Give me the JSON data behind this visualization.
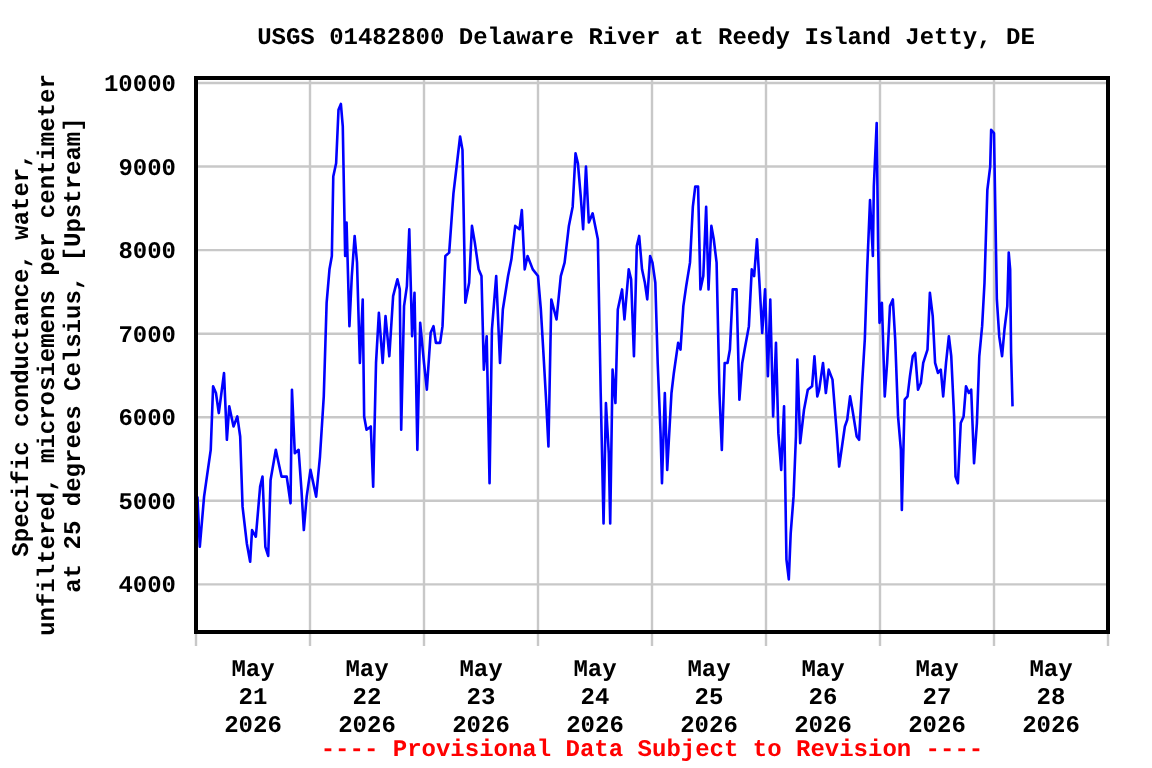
{
  "chart_data": {
    "type": "line",
    "title": "USGS 01482800 Delaware River at Reedy Island Jetty, DE",
    "ylabel": "Specific conductance, water,\nunfiltered, microsiemens per centimeter\nat 25 degrees Celsius, [Upstream]",
    "annotations": [
      "---- Provisional Data Subject to Revision ----"
    ],
    "xlim": [
      "2026-05-21",
      "2026-05-29"
    ],
    "xticks": [
      {
        "value": "2026-05-21",
        "label": null
      },
      {
        "value": "2026-05-21T12:00",
        "label": "May\n21\n2026"
      },
      {
        "value": "2026-05-22",
        "label": null
      },
      {
        "value": "2026-05-22T12:00",
        "label": "May\n22\n2026"
      },
      {
        "value": "2026-05-23",
        "label": null
      },
      {
        "value": "2026-05-23T12:00",
        "label": "May\n23\n2026"
      },
      {
        "value": "2026-05-24",
        "label": null
      },
      {
        "value": "2026-05-24T12:00",
        "label": "May\n24\n2026"
      },
      {
        "value": "2026-05-25",
        "label": null
      },
      {
        "value": "2026-05-25T12:00",
        "label": "May\n25\n2026"
      },
      {
        "value": "2026-05-26",
        "label": null
      },
      {
        "value": "2026-05-26T12:00",
        "label": "May\n26\n2026"
      },
      {
        "value": "2026-05-27",
        "label": null
      },
      {
        "value": "2026-05-27T12:00",
        "label": "May\n27\n2026"
      },
      {
        "value": "2026-05-28",
        "label": null
      },
      {
        "value": "2026-05-28T12:00",
        "label": "May\n28\n2026"
      },
      {
        "value": "2026-05-29",
        "label": null
      }
    ],
    "ylim": [
      3430,
      10060
    ],
    "yticks": [
      4000,
      5000,
      6000,
      7000,
      8000,
      9000,
      10000
    ],
    "grid": true,
    "marker": "none",
    "line_style": "solid",
    "x": [
      "2026-05-21T00:18",
      "2026-05-21T00:48",
      "2026-05-21T01:42",
      "2026-05-21T02:12",
      "2026-05-21T03:06",
      "2026-05-21T03:36",
      "2026-05-21T04:12",
      "2026-05-21T04:48",
      "2026-05-21T05:54",
      "2026-05-21T06:30",
      "2026-05-21T07:00",
      "2026-05-21T07:54",
      "2026-05-21T08:42",
      "2026-05-21T09:18",
      "2026-05-21T09:48",
      "2026-05-21T10:42",
      "2026-05-21T11:24",
      "2026-05-21T11:48",
      "2026-05-21T12:36",
      "2026-05-21T13:30",
      "2026-05-21T14:00",
      "2026-05-21T14:36",
      "2026-05-21T15:12",
      "2026-05-21T15:42",
      "2026-05-21T16:48",
      "2026-05-21T18:00",
      "2026-05-21T19:06",
      "2026-05-21T19:54",
      "2026-05-21T20:12",
      "2026-05-21T20:48",
      "2026-05-21T21:36",
      "2026-05-21T22:12",
      "2026-05-21T22:42",
      "2026-05-21T23:18",
      "2026-05-22T00:06",
      "2026-05-22T01:18",
      "2026-05-22T02:06",
      "2026-05-22T02:54",
      "2026-05-22T03:30",
      "2026-05-22T04:06",
      "2026-05-22T04:36",
      "2026-05-22T04:54",
      "2026-05-22T05:30",
      "2026-05-22T06:00",
      "2026-05-22T06:30",
      "2026-05-22T06:54",
      "2026-05-22T07:24",
      "2026-05-22T07:42",
      "2026-05-22T08:18",
      "2026-05-22T08:48",
      "2026-05-22T09:24",
      "2026-05-22T09:54",
      "2026-05-22T10:30",
      "2026-05-22T11:06",
      "2026-05-22T11:24",
      "2026-05-22T11:54",
      "2026-05-22T12:48",
      "2026-05-22T13:18",
      "2026-05-22T13:54",
      "2026-05-22T14:30",
      "2026-05-22T15:18",
      "2026-05-22T15:54",
      "2026-05-22T16:42",
      "2026-05-22T17:30",
      "2026-05-22T18:24",
      "2026-05-22T18:54",
      "2026-05-22T19:12",
      "2026-05-22T19:48",
      "2026-05-22T20:24",
      "2026-05-22T20:54",
      "2026-05-22T21:30",
      "2026-05-22T22:00",
      "2026-05-22T22:36",
      "2026-05-22T23:12",
      "2026-05-23T00:00",
      "2026-05-23T00:36",
      "2026-05-23T01:24",
      "2026-05-23T02:00",
      "2026-05-23T02:30",
      "2026-05-23T03:24",
      "2026-05-23T03:54",
      "2026-05-23T04:30",
      "2026-05-23T05:18",
      "2026-05-23T06:12",
      "2026-05-23T06:42",
      "2026-05-23T07:36",
      "2026-05-23T08:06",
      "2026-05-23T08:42",
      "2026-05-23T09:30",
      "2026-05-23T10:06",
      "2026-05-23T10:42",
      "2026-05-23T11:30",
      "2026-05-23T12:06",
      "2026-05-23T12:36",
      "2026-05-23T13:12",
      "2026-05-23T13:48",
      "2026-05-23T14:18",
      "2026-05-23T15:12",
      "2026-05-23T16:00",
      "2026-05-23T16:36",
      "2026-05-23T17:42",
      "2026-05-23T18:24",
      "2026-05-23T19:12",
      "2026-05-23T20:06",
      "2026-05-23T20:36",
      "2026-05-23T21:12",
      "2026-05-23T21:48",
      "2026-05-23T22:54",
      "2026-05-24T00:00",
      "2026-05-24T00:36",
      "2026-05-24T01:06",
      "2026-05-24T01:42",
      "2026-05-24T02:12",
      "2026-05-24T02:48",
      "2026-05-24T03:54",
      "2026-05-24T04:48",
      "2026-05-24T05:36",
      "2026-05-24T06:30",
      "2026-05-24T07:18",
      "2026-05-24T07:54",
      "2026-05-24T08:24",
      "2026-05-24T09:00",
      "2026-05-24T09:30",
      "2026-05-24T10:06",
      "2026-05-24T10:42",
      "2026-05-24T11:30",
      "2026-05-24T12:36",
      "2026-05-24T13:12",
      "2026-05-24T13:48",
      "2026-05-24T14:18",
      "2026-05-24T14:54",
      "2026-05-24T15:12",
      "2026-05-24T15:42",
      "2026-05-24T16:18",
      "2026-05-24T16:48",
      "2026-05-24T17:42",
      "2026-05-24T18:12",
      "2026-05-24T19:06",
      "2026-05-24T19:36",
      "2026-05-24T20:12",
      "2026-05-24T20:48",
      "2026-05-24T21:18",
      "2026-05-24T21:54",
      "2026-05-24T22:30",
      "2026-05-24T23:00",
      "2026-05-24T23:36",
      "2026-05-25T00:06",
      "2026-05-25T00:42",
      "2026-05-25T01:12",
      "2026-05-25T01:48",
      "2026-05-25T02:06",
      "2026-05-25T02:42",
      "2026-05-25T03:12",
      "2026-05-25T04:06",
      "2026-05-25T04:36",
      "2026-05-25T05:30",
      "2026-05-25T06:00",
      "2026-05-25T06:36",
      "2026-05-25T07:12",
      "2026-05-25T08:00",
      "2026-05-25T08:36",
      "2026-05-25T09:06",
      "2026-05-25T09:42",
      "2026-05-25T10:12",
      "2026-05-25T10:48",
      "2026-05-25T11:24",
      "2026-05-25T11:54",
      "2026-05-25T12:30",
      "2026-05-25T13:00",
      "2026-05-25T13:36",
      "2026-05-25T14:12",
      "2026-05-25T14:42",
      "2026-05-25T15:18",
      "2026-05-25T15:54",
      "2026-05-25T16:24",
      "2026-05-25T17:00",
      "2026-05-25T17:48",
      "2026-05-25T18:24",
      "2026-05-25T19:00",
      "2026-05-25T19:30",
      "2026-05-25T20:24",
      "2026-05-25T21:00",
      "2026-05-25T21:30",
      "2026-05-25T22:06",
      "2026-05-25T22:42",
      "2026-05-25T23:12",
      "2026-05-25T23:48",
      "2026-05-26T00:24",
      "2026-05-26T00:54",
      "2026-05-26T01:30",
      "2026-05-26T02:06",
      "2026-05-26T02:36",
      "2026-05-26T03:12",
      "2026-05-26T03:48",
      "2026-05-26T04:18",
      "2026-05-26T04:48",
      "2026-05-26T05:12",
      "2026-05-26T05:48",
      "2026-05-26T06:18",
      "2026-05-26T06:36",
      "2026-05-26T07:12",
      "2026-05-26T08:00",
      "2026-05-26T08:48",
      "2026-05-26T09:42",
      "2026-05-26T10:12",
      "2026-05-26T10:48",
      "2026-05-26T11:12",
      "2026-05-26T12:00",
      "2026-05-26T12:36",
      "2026-05-26T13:12",
      "2026-05-26T14:00",
      "2026-05-26T14:54",
      "2026-05-26T15:24",
      "2026-05-26T16:00",
      "2026-05-26T16:36",
      "2026-05-26T17:06",
      "2026-05-26T17:42",
      "2026-05-26T18:12",
      "2026-05-26T19:06",
      "2026-05-26T19:36",
      "2026-05-26T20:12",
      "2026-05-26T20:48",
      "2026-05-26T21:18",
      "2026-05-26T21:54",
      "2026-05-26T22:30",
      "2026-05-26T22:42",
      "2026-05-26T23:18",
      "2026-05-26T23:36",
      "2026-05-26T23:54",
      "2026-05-27T00:24",
      "2026-05-27T01:00",
      "2026-05-27T01:30",
      "2026-05-27T02:06",
      "2026-05-27T02:42",
      "2026-05-27T03:12",
      "2026-05-27T03:48",
      "2026-05-27T04:24",
      "2026-05-27T04:36",
      "2026-05-27T05:12",
      "2026-05-27T05:48",
      "2026-05-27T06:18",
      "2026-05-27T06:54",
      "2026-05-27T07:24",
      "2026-05-27T08:00",
      "2026-05-27T08:36",
      "2026-05-27T09:06",
      "2026-05-27T10:00",
      "2026-05-27T10:30",
      "2026-05-27T11:06",
      "2026-05-27T11:36",
      "2026-05-27T12:12",
      "2026-05-27T12:48",
      "2026-05-27T13:18",
      "2026-05-27T13:54",
      "2026-05-27T14:30",
      "2026-05-27T15:00",
      "2026-05-27T15:36",
      "2026-05-27T15:54",
      "2026-05-27T16:24",
      "2026-05-27T17:00",
      "2026-05-27T17:36",
      "2026-05-27T18:06",
      "2026-05-27T18:42",
      "2026-05-27T19:12",
      "2026-05-27T19:48",
      "2026-05-27T20:24",
      "2026-05-27T20:54",
      "2026-05-27T21:30",
      "2026-05-27T22:00",
      "2026-05-27T22:36",
      "2026-05-27T23:12",
      "2026-05-27T23:24",
      "2026-05-28T00:00",
      "2026-05-28T00:36",
      "2026-05-28T01:06",
      "2026-05-28T01:42",
      "2026-05-28T02:12",
      "2026-05-28T02:48",
      "2026-05-28T03:06",
      "2026-05-28T03:24",
      "2026-05-28T03:36",
      "2026-05-28T03:54"
    ],
    "series": [
      {
        "color": "#0000ff",
        "values": [
          5050,
          4450,
          5050,
          5250,
          5610,
          6370,
          6290,
          6050,
          6530,
          5730,
          6130,
          5890,
          6010,
          5770,
          4930,
          4490,
          4270,
          4650,
          4570,
          5170,
          5290,
          4450,
          4340,
          5250,
          5610,
          5290,
          5290,
          4970,
          6330,
          5570,
          5610,
          5130,
          4650,
          5050,
          5370,
          5050,
          5530,
          6250,
          7370,
          7770,
          7930,
          8880,
          9040,
          9680,
          9750,
          9480,
          7930,
          8330,
          7090,
          7690,
          8170,
          7850,
          6650,
          7410,
          6010,
          5850,
          5890,
          5170,
          6650,
          7250,
          6650,
          7210,
          6730,
          7450,
          7650,
          7530,
          5850,
          7330,
          7570,
          8250,
          6970,
          7490,
          5610,
          7130,
          6650,
          6330,
          7010,
          7090,
          6890,
          6890,
          7090,
          7930,
          7970,
          8680,
          8920,
          9360,
          9200,
          7370,
          7610,
          8290,
          8090,
          7770,
          7690,
          6570,
          6970,
          5210,
          7050,
          7690,
          6650,
          7290,
          7690,
          7890,
          8290,
          8250,
          8480,
          7770,
          7930,
          7770,
          7690,
          7290,
          6810,
          6210,
          5650,
          7410,
          7170,
          7690,
          7850,
          8290,
          8520,
          9160,
          9040,
          8640,
          8250,
          9000,
          8330,
          8440,
          8130,
          6290,
          4730,
          6170,
          5570,
          4730,
          6570,
          6170,
          7290,
          7530,
          7170,
          7770,
          7650,
          6730,
          8050,
          8170,
          7770,
          7610,
          7410,
          7930,
          7850,
          7610,
          6650,
          5810,
          5210,
          6290,
          5370,
          6290,
          6530,
          6890,
          6810,
          7330,
          7570,
          7850,
          8520,
          8760,
          8760,
          7530,
          7690,
          8520,
          7530,
          8290,
          8130,
          7850,
          6290,
          5610,
          6650,
          6650,
          6810,
          7530,
          7530,
          6210,
          6650,
          6810,
          7090,
          7770,
          7690,
          8130,
          7530,
          7010,
          7530,
          6490,
          7410,
          6010,
          6890,
          5810,
          5370,
          6130,
          4300,
          4060,
          4610,
          5050,
          5770,
          6690,
          5690,
          6090,
          6330,
          6370,
          6730,
          6250,
          6330,
          6650,
          6290,
          6570,
          6450,
          5810,
          5410,
          5650,
          5890,
          5970,
          6250,
          6090,
          5770,
          5730,
          6370,
          6930,
          7770,
          8600,
          7930,
          8760,
          9520,
          8090,
          7130,
          7370,
          6250,
          6650,
          7330,
          7410,
          6930,
          6010,
          5610,
          4890,
          6210,
          6250,
          6490,
          6730,
          6770,
          6330,
          6410,
          6650,
          6810,
          7490,
          7210,
          6650,
          6530,
          6570,
          6250,
          6650,
          6970,
          6730,
          6010,
          5290,
          5210,
          5930,
          6010,
          6370,
          6290,
          6330,
          5450,
          5930,
          6730,
          7090,
          7610,
          8720,
          9000,
          9440,
          9400,
          7410,
          6970,
          6730,
          7050,
          7330,
          7970,
          7770,
          6770,
          6130
        ]
      }
    ]
  }
}
